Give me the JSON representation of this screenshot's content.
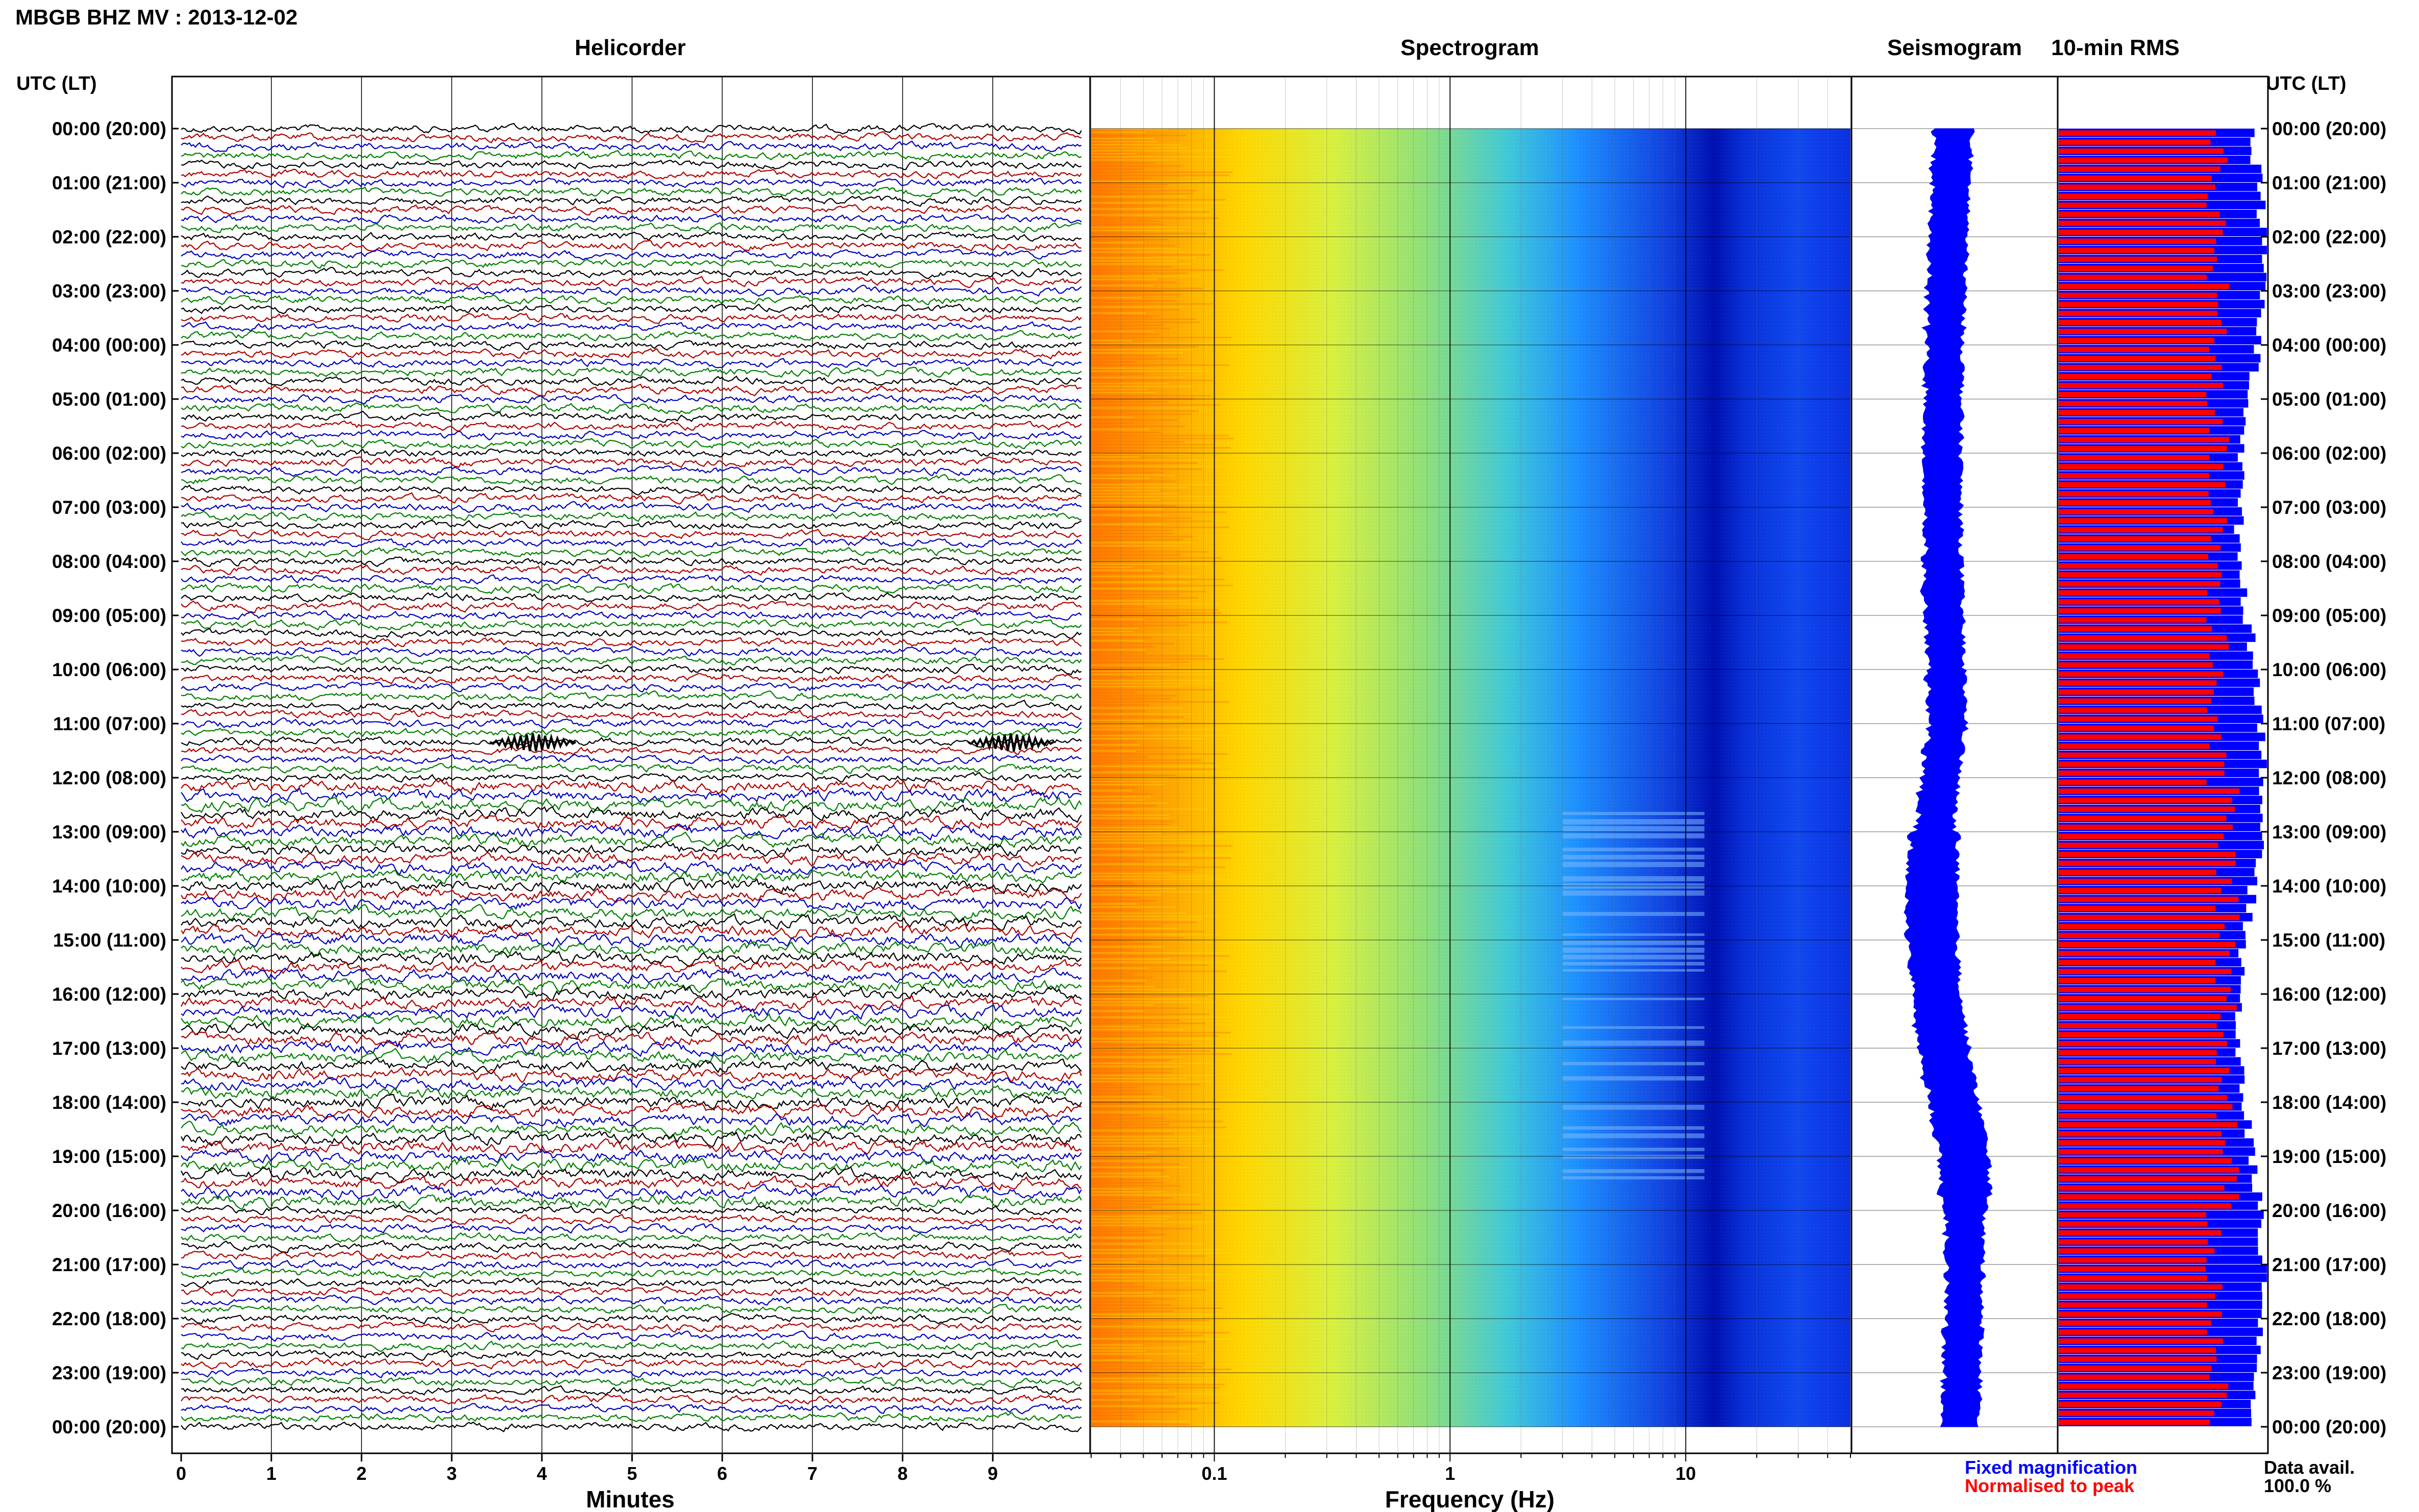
{
  "header": {
    "title": "MBGB BHZ MV : 2013-12-02",
    "left_axis_label": "UTC (LT)",
    "right_axis_label": "UTC (LT)"
  },
  "chart_data": [
    {
      "type": "line",
      "title": "Helicorder",
      "xlabel": "Minutes",
      "xlim": [
        0,
        10
      ],
      "x_ticks": [
        "0",
        "1",
        "2",
        "3",
        "4",
        "5",
        "6",
        "7",
        "8",
        "9"
      ],
      "row_interval_minutes": 10,
      "trace_colors": [
        "#000000",
        "#b00000",
        "#0000c0",
        "#008000"
      ],
      "events": [
        {
          "hour": 11,
          "minute": 3.9
        },
        {
          "hour": 11,
          "minute": 9.2
        }
      ]
    },
    {
      "type": "heatmap",
      "title": "Spectrogram",
      "xlabel": "Frequency (Hz)",
      "x_scale": "log",
      "xlim": [
        0.03,
        50
      ],
      "x_ticks": [
        "0.1",
        "1",
        "10"
      ],
      "tremor_band_hz": [
        3,
        12
      ],
      "tremor_hours": [
        12.5,
        19.5
      ]
    },
    {
      "type": "line",
      "title": "Seismogram",
      "color": "#0000ff"
    },
    {
      "type": "bar",
      "title": "10-min RMS",
      "series": [
        {
          "name": "Fixed magnification",
          "color": "#0000ff"
        },
        {
          "name": "Normalised to peak",
          "color": "#ff0000"
        }
      ],
      "data_availability_label": "Data avail.",
      "data_availability_value": "100.0 %"
    }
  ],
  "time_labels": [
    "00:00 (20:00)",
    "01:00 (21:00)",
    "02:00 (22:00)",
    "03:00 (23:00)",
    "04:00 (00:00)",
    "05:00 (01:00)",
    "06:00 (02:00)",
    "07:00 (03:00)",
    "08:00 (04:00)",
    "09:00 (05:00)",
    "10:00 (06:00)",
    "11:00 (07:00)",
    "12:00 (08:00)",
    "13:00 (09:00)",
    "14:00 (10:00)",
    "15:00 (11:00)",
    "16:00 (12:00)",
    "17:00 (13:00)",
    "18:00 (14:00)",
    "19:00 (15:00)",
    "20:00 (16:00)",
    "21:00 (17:00)",
    "22:00 (18:00)",
    "23:00 (19:00)",
    "00:00 (20:00)"
  ]
}
